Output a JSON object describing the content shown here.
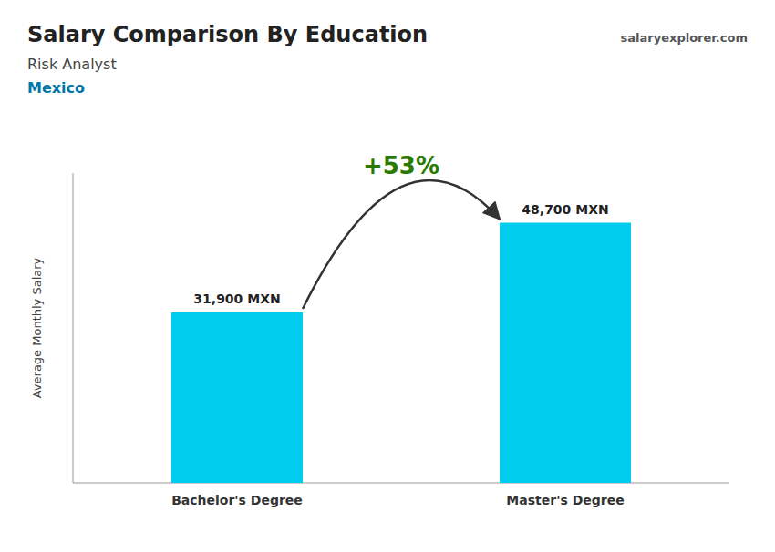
{
  "chart_data": {
    "type": "bar",
    "title": "Salary Comparison By Education",
    "subtitle": "Risk Analyst",
    "annotations": [
      "Mexico",
      "salaryexplorer.com",
      "+53%"
    ],
    "y_label": "Average Monthly Salary",
    "categories": [
      "Bachelor's Degree",
      "Master's Degree"
    ],
    "values": [
      31900,
      48700
    ],
    "value_labels": [
      "31,900 MXN",
      "48,700 MXN"
    ],
    "data_labels": true,
    "color": "#00ccee",
    "ylim": [
      0,
      58000
    ],
    "tick_labels": false,
    "grid": false
  }
}
